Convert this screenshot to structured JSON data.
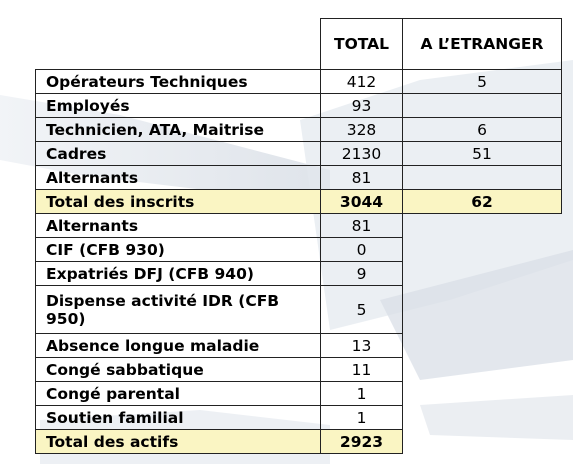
{
  "table": {
    "header": {
      "total": "TOTAL",
      "abroad": "A L’ETRANGER"
    },
    "inscrits_rows": [
      {
        "label": "Opérateurs Techniques",
        "total": "412",
        "abroad": "5"
      },
      {
        "label": "Employés",
        "total": "93",
        "abroad": ""
      },
      {
        "label": "Technicien, ATA, Maitrise",
        "total": "328",
        "abroad": "6"
      },
      {
        "label": "Cadres",
        "total": "2130",
        "abroad": "51"
      },
      {
        "label": "Alternants",
        "total": "81",
        "abroad": ""
      }
    ],
    "total_inscrits": {
      "label": "Total des inscrits",
      "total": "3044",
      "abroad": "62"
    },
    "actifs_rows": [
      {
        "label": "Alternants",
        "total": "81"
      },
      {
        "label": "CIF (CFB 930)",
        "total": "0"
      },
      {
        "label": "Expatriés DFJ (CFB 940)",
        "total": "9"
      },
      {
        "label": "Dispense activité IDR (CFB 950)",
        "total": "5"
      },
      {
        "label": "Absence longue maladie",
        "total": "13"
      },
      {
        "label": "Congé sabbatique",
        "total": "11"
      },
      {
        "label": "Congé parental",
        "total": "1"
      },
      {
        "label": "Soutien familial",
        "total": "1"
      }
    ],
    "total_actifs": {
      "label": "Total des actifs",
      "total": "2923"
    }
  },
  "colors": {
    "highlight": "#faf5c3",
    "border": "#222222",
    "watermark": "#dfe4ea"
  }
}
